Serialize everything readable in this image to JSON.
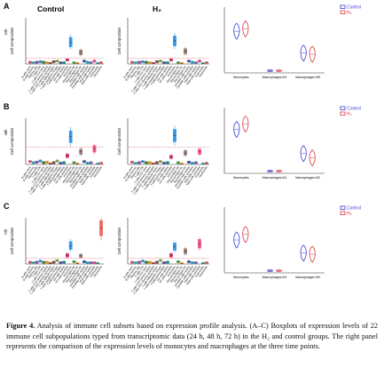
{
  "panels": [
    {
      "letter": "A",
      "time_label": "24h"
    },
    {
      "letter": "B",
      "time_label": "48h"
    },
    {
      "letter": "C",
      "time_label": "72h"
    }
  ],
  "column_titles": {
    "control": "Control",
    "h2": "H₂"
  },
  "ylabel": "Cell composition",
  "legend": {
    "control": "Control",
    "h2": "H₂",
    "control_color": "#3a3ad0",
    "h2_color": "#d9363e"
  },
  "cell_types": [
    "B cells naive",
    "B cells memory",
    "Plasma cells",
    "T cells CD8",
    "T cells CD4 naive",
    "T cells CD4 memory resting",
    "T cells CD4 memory activated",
    "T cells follicular helper",
    "T cells regulatory (Tregs)",
    "T cells gamma delta",
    "NK cells resting",
    "NK cells activated",
    "Monocytes",
    "Macrophages M0",
    "Macrophages M1",
    "Macrophages M2",
    "Dendritic cells resting",
    "Dendritic cells activated",
    "Mast cells resting",
    "Mast cells activated",
    "Eosinophils",
    "Neutrophils"
  ],
  "chart_data": [
    {
      "type": "box",
      "panel": "A",
      "group": "Control",
      "ylim": [
        0,
        0.8
      ],
      "reference_line": 0.1,
      "values": [
        0.03,
        0.02,
        0.03,
        0.04,
        0.03,
        0.02,
        0.01,
        0.04,
        0.05,
        0.02,
        0.02,
        0.07,
        0.38,
        0.02,
        0.01,
        0.2,
        0.05,
        0.03,
        0.02,
        0.05,
        0.01,
        0.02
      ]
    },
    {
      "type": "box",
      "panel": "A",
      "group": "H2",
      "ylim": [
        0,
        0.8
      ],
      "reference_line": 0.1,
      "values": [
        0.03,
        0.02,
        0.03,
        0.04,
        0.03,
        0.02,
        0.01,
        0.04,
        0.05,
        0.02,
        0.02,
        0.07,
        0.4,
        0.02,
        0.01,
        0.22,
        0.05,
        0.03,
        0.02,
        0.05,
        0.01,
        0.02
      ]
    },
    {
      "type": "violin",
      "panel": "A",
      "categories": [
        "Monocytes",
        "Macrophages M1",
        "Macrophages M0"
      ],
      "series": [
        {
          "name": "Control",
          "values": [
            0.38,
            0.02,
            0.18
          ]
        },
        {
          "name": "H2",
          "values": [
            0.4,
            0.02,
            0.17
          ]
        }
      ],
      "ylim": [
        0,
        0.6
      ]
    },
    {
      "type": "box",
      "panel": "B",
      "group": "Control",
      "ylim": [
        0,
        0.8
      ],
      "reference_line": 0.3,
      "values": [
        0.05,
        0.03,
        0.04,
        0.06,
        0.03,
        0.04,
        0.01,
        0.03,
        0.06,
        0.02,
        0.03,
        0.15,
        0.48,
        0.03,
        0.01,
        0.22,
        0.05,
        0.02,
        0.03,
        0.27,
        0.01,
        0.02
      ]
    },
    {
      "type": "box",
      "panel": "B",
      "group": "H2",
      "ylim": [
        0,
        0.8
      ],
      "reference_line": 0.3,
      "values": [
        0.04,
        0.02,
        0.03,
        0.05,
        0.03,
        0.03,
        0.01,
        0.03,
        0.05,
        0.02,
        0.03,
        0.13,
        0.5,
        0.03,
        0.01,
        0.2,
        0.04,
        0.02,
        0.03,
        0.22,
        0.01,
        0.02
      ]
    },
    {
      "type": "violin",
      "panel": "B",
      "categories": [
        "Monocytes",
        "Macrophages M1",
        "Macrophages M2"
      ],
      "series": [
        {
          "name": "Control",
          "values": [
            0.4,
            0.02,
            0.18
          ]
        },
        {
          "name": "H2",
          "values": [
            0.45,
            0.02,
            0.14
          ]
        }
      ],
      "ylim": [
        0,
        0.6
      ]
    },
    {
      "type": "box",
      "panel": "C",
      "group": "Control",
      "ylim": [
        0,
        0.8
      ],
      "reference_line": 0.1,
      "values": [
        0.03,
        0.02,
        0.03,
        0.05,
        0.03,
        0.03,
        0.01,
        0.03,
        0.06,
        0.02,
        0.03,
        0.15,
        0.32,
        0.04,
        0.01,
        0.14,
        0.04,
        0.02,
        0.02,
        0.02,
        0.01,
        0.62
      ]
    },
    {
      "type": "box",
      "panel": "C",
      "group": "H2",
      "ylim": [
        0,
        0.8
      ],
      "reference_line": 0.1,
      "values": [
        0.03,
        0.02,
        0.03,
        0.05,
        0.03,
        0.03,
        0.01,
        0.03,
        0.06,
        0.02,
        0.03,
        0.15,
        0.3,
        0.04,
        0.01,
        0.22,
        0.04,
        0.02,
        0.02,
        0.35,
        0.01,
        0.02
      ]
    },
    {
      "type": "violin",
      "panel": "C",
      "categories": [
        "Monocytes",
        "Macrophages M1",
        "Macrophages M2"
      ],
      "series": [
        {
          "name": "Control",
          "values": [
            0.3,
            0.02,
            0.18
          ]
        },
        {
          "name": "H2",
          "values": [
            0.35,
            0.02,
            0.17
          ]
        }
      ],
      "ylim": [
        0,
        0.6
      ]
    }
  ],
  "box_colors": [
    "#e0507a",
    "#2fb6b0",
    "#8e44ad",
    "#3b8ed8",
    "#2e7d32",
    "#f39c12",
    "#c0392b",
    "#6d4c41",
    "#7cb342",
    "#5e35b1",
    "#00897b",
    "#d81b60",
    "#1e88e5",
    "#43a047",
    "#fb8c00",
    "#8d6e63",
    "#3949ab",
    "#00acc1",
    "#7e57c2",
    "#ec407a",
    "#26a69a",
    "#ef5350"
  ],
  "caption": {
    "label": "Figure 4.",
    "text": " Analysis of immune cell subsets based on expression profile analysis. (A–C) Boxplots of expression levels of 22 immune cell subpopulations typed from transcriptomic data (24 h, 48 h, 72 h) in the H₂ and control groups. The right panel represents the comparison of the expression levels of monocytes and macrophages at the three time points."
  }
}
